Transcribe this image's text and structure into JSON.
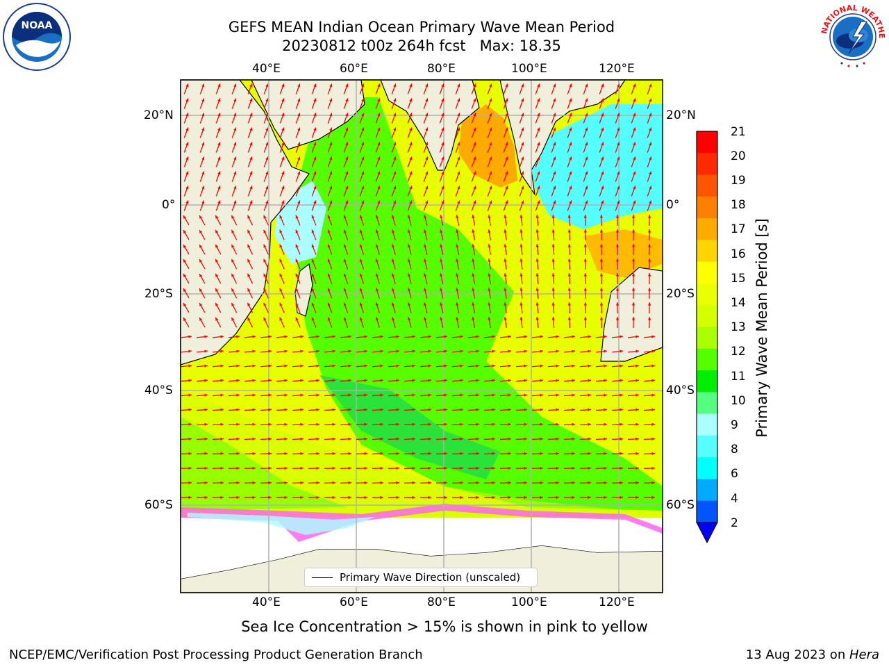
{
  "header": {
    "title_line1": "GEFS MEAN Indian Ocean Primary Wave Mean Period",
    "title_line2": "20230812 t00z 264h fcst   Max: 18.35"
  },
  "logos": {
    "noaa": {
      "icon": "noaa-logo",
      "text": "NOAA"
    },
    "nws": {
      "icon": "national-weather-service-logo",
      "text": "NATIONAL WEATHER SERVICE"
    }
  },
  "map": {
    "lon_range": [
      20,
      130
    ],
    "lat_range": [
      -75,
      28
    ],
    "lon_ticks": [
      "40°E",
      "60°E",
      "80°E",
      "100°E",
      "120°E"
    ],
    "lat_ticks": [
      "20°N",
      "0°",
      "20°S",
      "40°S",
      "60°S"
    ],
    "grid": true,
    "land_color": "#efefdc",
    "vector_color": "#ff0000"
  },
  "colorbar": {
    "title": "Primary Wave Mean Period [s]",
    "ticks": [
      "21",
      "20",
      "19",
      "18",
      "17",
      "16",
      "15",
      "14",
      "13",
      "12",
      "11",
      "10",
      "9",
      "8",
      "6",
      "4",
      "2"
    ],
    "colors": [
      "#ff0000",
      "#ff2a00",
      "#ff5500",
      "#ff8000",
      "#ffaa00",
      "#ffd400",
      "#ffff00",
      "#eaff00",
      "#d4ff00",
      "#aaff00",
      "#55ff00",
      "#00ee00",
      "#55ff7f",
      "#aaffff",
      "#55ffff",
      "#00ffff",
      "#00aaff",
      "#0055ff"
    ],
    "under_color": "#0000ff"
  },
  "legend": {
    "label": "Primary Wave Direction (unscaled)"
  },
  "subtitle": "Sea Ice Concentration > 15% is shown in pink to yellow",
  "footer": {
    "left": "NCEP/EMC/Verification Post Processing Product Generation Branch",
    "date": "13 Aug 2023 on ",
    "machine": "Hera"
  }
}
